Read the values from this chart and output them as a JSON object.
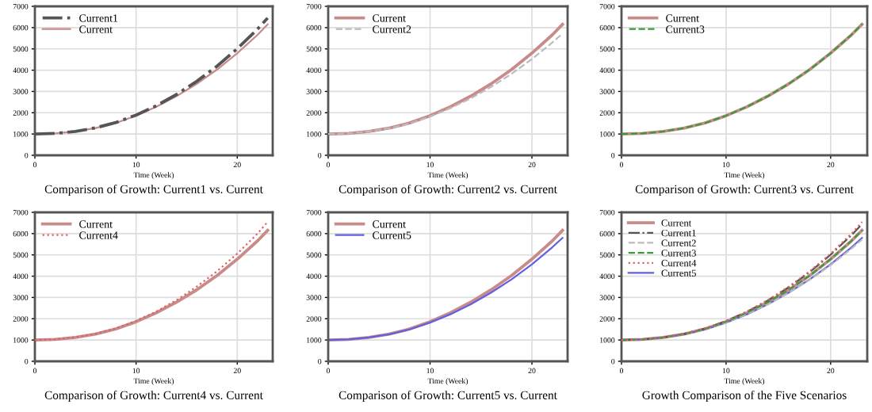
{
  "chart_data": [
    {
      "type": "line",
      "title": "Comparison of Growth: Current1 vs. Current",
      "xlabel": "Time (Week)",
      "xlim": [
        0,
        23.5
      ],
      "xticks": [
        0,
        10,
        20
      ],
      "ylim": [
        0,
        7000
      ],
      "yticks": [
        0,
        1000,
        2000,
        3000,
        4000,
        5000,
        6000,
        7000
      ],
      "grid": true,
      "legend": "top left",
      "marker": "none",
      "x": [
        0,
        2,
        4,
        6,
        8,
        10,
        12,
        14,
        16,
        18,
        20,
        22,
        23
      ],
      "series": [
        {
          "name": "Current1",
          "color": "#555555",
          "line_style": "dashdot",
          "values": [
            1000,
            1030,
            1120,
            1290,
            1540,
            1890,
            2330,
            2860,
            3480,
            4190,
            5010,
            5930,
            6450
          ]
        },
        {
          "name": "Current",
          "color": "#c98a8a",
          "line_style": "solid",
          "values": [
            1000,
            1030,
            1120,
            1280,
            1520,
            1860,
            2280,
            2780,
            3360,
            4030,
            4800,
            5660,
            6150
          ]
        }
      ]
    },
    {
      "type": "line",
      "title": "Comparison of Growth: Current2 vs. Current",
      "xlabel": "Time (Week)",
      "xlim": [
        0,
        23.5
      ],
      "xticks": [
        0,
        10,
        20
      ],
      "ylim": [
        0,
        7000
      ],
      "yticks": [
        0,
        1000,
        2000,
        3000,
        4000,
        5000,
        6000,
        7000
      ],
      "grid": true,
      "legend": "top left",
      "marker": "none",
      "x": [
        0,
        2,
        4,
        6,
        8,
        10,
        12,
        14,
        16,
        18,
        20,
        22,
        23
      ],
      "series": [
        {
          "name": "Current",
          "color": "#c98a8a",
          "line_style": "solid",
          "values": [
            1000,
            1030,
            1120,
            1280,
            1520,
            1860,
            2280,
            2780,
            3360,
            4030,
            4800,
            5660,
            6150
          ]
        },
        {
          "name": "Current2",
          "color": "#bbbbbb",
          "line_style": "dashed",
          "values": [
            1000,
            1030,
            1120,
            1270,
            1500,
            1820,
            2220,
            2680,
            3220,
            3830,
            4520,
            5300,
            5720
          ]
        }
      ]
    },
    {
      "type": "line",
      "title": "Comparison of Growth: Current3 vs. Current",
      "xlabel": "Time (Week)",
      "xlim": [
        0,
        23.5
      ],
      "xticks": [
        0,
        10,
        20
      ],
      "ylim": [
        0,
        7000
      ],
      "yticks": [
        0,
        1000,
        2000,
        3000,
        4000,
        5000,
        6000,
        7000
      ],
      "grid": true,
      "legend": "top left",
      "marker": "none",
      "x": [
        0,
        2,
        4,
        6,
        8,
        10,
        12,
        14,
        16,
        18,
        20,
        22,
        23
      ],
      "series": [
        {
          "name": "Current",
          "color": "#c98a8a",
          "line_style": "solid",
          "values": [
            1000,
            1030,
            1120,
            1280,
            1520,
            1860,
            2280,
            2780,
            3360,
            4030,
            4800,
            5660,
            6150
          ]
        },
        {
          "name": "Current3",
          "color": "#3a9a3a",
          "line_style": "dashed",
          "values": [
            1000,
            1030,
            1120,
            1280,
            1520,
            1860,
            2280,
            2780,
            3360,
            4030,
            4800,
            5670,
            6160
          ]
        }
      ]
    },
    {
      "type": "line",
      "title": "Comparison of Growth: Current4 vs. Current",
      "xlabel": "Time (Week)",
      "xlim": [
        0,
        23.5
      ],
      "xticks": [
        0,
        10,
        20
      ],
      "ylim": [
        0,
        7000
      ],
      "yticks": [
        0,
        1000,
        2000,
        3000,
        4000,
        5000,
        6000,
        7000
      ],
      "grid": true,
      "legend": "top left",
      "marker": "none",
      "x": [
        0,
        2,
        4,
        6,
        8,
        10,
        12,
        14,
        16,
        18,
        20,
        22,
        23
      ],
      "series": [
        {
          "name": "Current",
          "color": "#c98a8a",
          "line_style": "solid",
          "values": [
            1000,
            1030,
            1120,
            1280,
            1520,
            1860,
            2280,
            2780,
            3360,
            4030,
            4800,
            5660,
            6150
          ]
        },
        {
          "name": "Current4",
          "color": "#e06060",
          "line_style": "dotted",
          "values": [
            1000,
            1030,
            1130,
            1290,
            1550,
            1900,
            2340,
            2880,
            3510,
            4230,
            5060,
            6000,
            6550
          ]
        }
      ]
    },
    {
      "type": "line",
      "title": "Comparison of Growth: Current5 vs. Current",
      "xlabel": "Time (Week)",
      "xlim": [
        0,
        23.5
      ],
      "xticks": [
        0,
        10,
        20
      ],
      "ylim": [
        0,
        7000
      ],
      "yticks": [
        0,
        1000,
        2000,
        3000,
        4000,
        5000,
        6000,
        7000
      ],
      "grid": true,
      "legend": "top left",
      "marker": "none",
      "x": [
        0,
        2,
        4,
        6,
        8,
        10,
        12,
        14,
        16,
        18,
        20,
        22,
        23
      ],
      "series": [
        {
          "name": "Current",
          "color": "#c98a8a",
          "line_style": "solid",
          "values": [
            1000,
            1030,
            1120,
            1280,
            1520,
            1860,
            2280,
            2780,
            3360,
            4030,
            4800,
            5660,
            6150
          ]
        },
        {
          "name": "Current5",
          "color": "#6060e0",
          "line_style": "solid",
          "values": [
            1000,
            1030,
            1120,
            1270,
            1500,
            1820,
            2210,
            2680,
            3230,
            3850,
            4560,
            5360,
            5800
          ]
        }
      ]
    },
    {
      "type": "line",
      "title": "Growth Comparison of the Five Scenarios",
      "xlabel": "Time (Week)",
      "xlim": [
        0,
        23.5
      ],
      "xticks": [
        0,
        10,
        20
      ],
      "ylim": [
        0,
        7000
      ],
      "yticks": [
        0,
        1000,
        2000,
        3000,
        4000,
        5000,
        6000,
        7000
      ],
      "grid": true,
      "legend": "top left",
      "marker": "none",
      "x": [
        0,
        2,
        4,
        6,
        8,
        10,
        12,
        14,
        16,
        18,
        20,
        22,
        23
      ],
      "series": [
        {
          "name": "Current",
          "color": "#c98a8a",
          "line_style": "solid",
          "values": [
            1000,
            1030,
            1120,
            1280,
            1520,
            1860,
            2280,
            2780,
            3360,
            4030,
            4800,
            5660,
            6150
          ]
        },
        {
          "name": "Current1",
          "color": "#555555",
          "line_style": "dashdot",
          "values": [
            1000,
            1030,
            1120,
            1290,
            1540,
            1890,
            2330,
            2860,
            3480,
            4190,
            5010,
            5930,
            6450
          ]
        },
        {
          "name": "Current2",
          "color": "#bbbbbb",
          "line_style": "dashed",
          "values": [
            1000,
            1030,
            1120,
            1270,
            1500,
            1820,
            2220,
            2680,
            3220,
            3830,
            4520,
            5300,
            5720
          ]
        },
        {
          "name": "Current3",
          "color": "#3a9a3a",
          "line_style": "dashed",
          "values": [
            1000,
            1030,
            1120,
            1280,
            1520,
            1860,
            2280,
            2780,
            3360,
            4030,
            4800,
            5670,
            6160
          ]
        },
        {
          "name": "Current4",
          "color": "#e06060",
          "line_style": "dotted",
          "values": [
            1000,
            1030,
            1130,
            1290,
            1550,
            1900,
            2340,
            2880,
            3510,
            4230,
            5060,
            6000,
            6550
          ]
        },
        {
          "name": "Current5",
          "color": "#6060e0",
          "line_style": "solid",
          "values": [
            1000,
            1030,
            1120,
            1270,
            1500,
            1820,
            2210,
            2680,
            3230,
            3850,
            4560,
            5360,
            5800
          ]
        }
      ]
    }
  ]
}
